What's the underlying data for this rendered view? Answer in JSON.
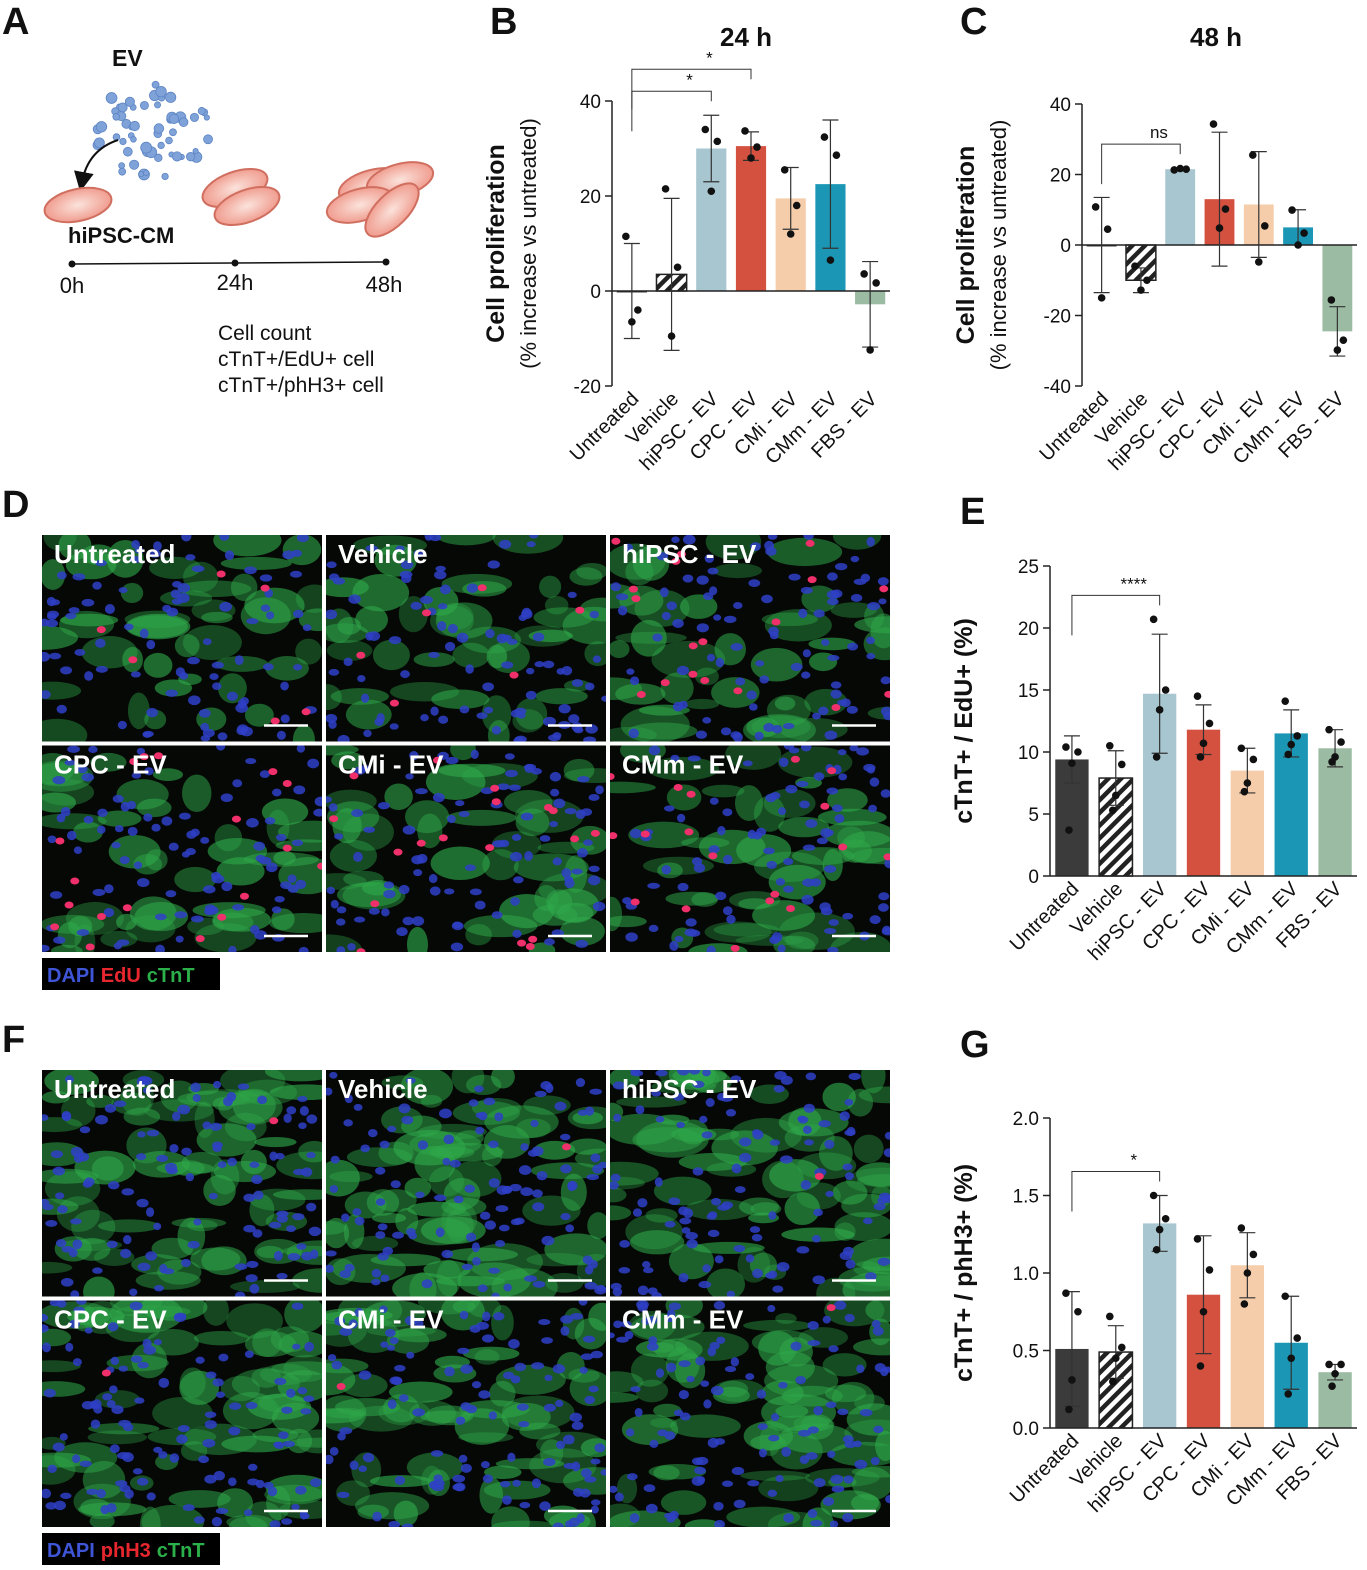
{
  "schematic": {
    "letter": "A",
    "ev_label": "EV",
    "cell_label": "hiPSC-CM",
    "timepoints": [
      "0h",
      "24h",
      "48h"
    ],
    "readouts": [
      "Cell count",
      "cTnT+/EdU+ cell",
      "cTnT+/phH3+ cell"
    ]
  },
  "micrographs": [
    {
      "letter": "D",
      "panels": [
        "Untreated",
        "Vehicle",
        "hiPSC - EV",
        "CPC - EV",
        "CMi - EV",
        "CMm - EV"
      ],
      "stain_legend": [
        {
          "name": "DAPI",
          "color": "#3f55d8"
        },
        {
          "name": "EdU",
          "color": "#e8262e"
        },
        {
          "name": "cTnT",
          "color": "#2bb04a"
        }
      ]
    },
    {
      "letter": "F",
      "panels": [
        "Untreated",
        "Vehicle",
        "hiPSC - EV",
        "CPC - EV",
        "CMi - EV",
        "CMm - EV"
      ],
      "stain_legend": [
        {
          "name": "DAPI",
          "color": "#3f55d8"
        },
        {
          "name": "phH3",
          "color": "#e8262e"
        },
        {
          "name": "cTnT",
          "color": "#2bb04a"
        }
      ]
    }
  ],
  "chart_data": [
    {
      "type": "bar",
      "letter": "B",
      "title": "24 h",
      "ylabel": [
        "Cell proliferation",
        "(% increase vs untreated)"
      ],
      "categories": [
        "Untreated",
        "Vehicle",
        "hiPSC - EV",
        "CPC - EV",
        "CMi - EV",
        "CMm - EV",
        "FBS - EV"
      ],
      "values": [
        0,
        3.5,
        30,
        30.5,
        19.5,
        22.5,
        -2.8
      ],
      "errors": [
        10,
        16,
        7,
        3,
        6.5,
        13.5,
        9
      ],
      "points": [
        [
          11.5,
          -4,
          -6.5
        ],
        [
          21.5,
          5,
          -9.5
        ],
        [
          34,
          31.5,
          21
        ],
        [
          33.7,
          30.3,
          28
        ],
        [
          25.5,
          18,
          12
        ],
        [
          32.4,
          28.6,
          6.5
        ],
        [
          3.6,
          1.7,
          -12.4
        ]
      ],
      "colors": [
        "#3b3b3b",
        "#ffffff",
        "#a7c6d0",
        "#d4503f",
        "#f5cdaa",
        "#1b97b5",
        "#9bbba3"
      ],
      "hatched": [
        "Vehicle"
      ],
      "ylim": [
        -20,
        40
      ],
      "yticks": [
        -20,
        0,
        20,
        40
      ],
      "significance": [
        {
          "groups": [
            "Untreated",
            "hiPSC - EV"
          ],
          "label": "*"
        },
        {
          "groups": [
            "Untreated",
            "CPC - EV"
          ],
          "label": "*"
        }
      ]
    },
    {
      "type": "bar",
      "letter": "C",
      "title": "48 h",
      "ylabel": [
        "Cell proliferation",
        "(% increase vs untreated)"
      ],
      "categories": [
        "Untreated",
        "Vehicle",
        "hiPSC - EV",
        "CPC - EV",
        "CMi - EV",
        "CMm - EV",
        "FBS - EV"
      ],
      "values": [
        0,
        -10,
        21.5,
        13,
        11.5,
        5,
        -24.5
      ],
      "errors": [
        13.5,
        3.5,
        0.3,
        19,
        15,
        5,
        7
      ],
      "points": [
        [
          10.8,
          4.5,
          -15
        ],
        [
          -6,
          -10,
          -12.8
        ],
        [
          21.3,
          21.5,
          21.7
        ],
        [
          34.3,
          10.2,
          4.8
        ],
        [
          25.5,
          5.4,
          -4.8
        ],
        [
          9.9,
          3.4,
          0
        ],
        [
          -15.6,
          -27,
          -29.8
        ]
      ],
      "colors": [
        "#3b3b3b",
        "#ffffff",
        "#a7c6d0",
        "#d4503f",
        "#f5cdaa",
        "#1b97b5",
        "#9bbba3"
      ],
      "hatched": [
        "Vehicle"
      ],
      "ylim": [
        -40,
        40
      ],
      "yticks": [
        -40,
        -20,
        0,
        20,
        40
      ],
      "significance": [
        {
          "groups": [
            "Untreated",
            "hiPSC - EV"
          ],
          "label": "ns"
        }
      ]
    },
    {
      "type": "bar",
      "letter": "E",
      "ylabel": [
        "cTnT+ / EdU+ (%)"
      ],
      "categories": [
        "Untreated",
        "Vehicle",
        "hiPSC - EV",
        "CPC - EV",
        "CMi - EV",
        "CMm - EV",
        "FBS - EV"
      ],
      "values": [
        9.4,
        7.9,
        14.7,
        11.8,
        8.5,
        11.5,
        10.3
      ],
      "errors": [
        1.9,
        2.2,
        4.8,
        2.0,
        1.8,
        1.9,
        1.5
      ],
      "points": [
        [
          10.4,
          10,
          9.1,
          3.7
        ],
        [
          10.5,
          9,
          6.5,
          5.3
        ],
        [
          20.7,
          15,
          13.4,
          9.6
        ],
        [
          14.5,
          12.3,
          10.7,
          9.6
        ],
        [
          10.3,
          9.4,
          7.5,
          6.8
        ],
        [
          14.1,
          11.3,
          10.6,
          9.8
        ],
        [
          11.8,
          10.8,
          9.6,
          9.2
        ]
      ],
      "colors": [
        "#3b3b3b",
        "#ffffff",
        "#a7c6d0",
        "#d4503f",
        "#f5cdaa",
        "#1b97b5",
        "#9bbba3"
      ],
      "hatched": [
        "Vehicle"
      ],
      "ylim": [
        0,
        25
      ],
      "yticks": [
        0,
        5,
        10,
        15,
        20,
        25
      ],
      "significance": [
        {
          "groups": [
            "Untreated",
            "hiPSC - EV"
          ],
          "label": "****"
        }
      ]
    },
    {
      "type": "bar",
      "letter": "G",
      "ylabel": [
        "cTnT+ / phH3+ (%)"
      ],
      "categories": [
        "Untreated",
        "Vehicle",
        "hiPSC - EV",
        "CPC - EV",
        "CMi - EV",
        "CMm - EV",
        "FBS - EV"
      ],
      "values": [
        0.51,
        0.49,
        1.32,
        0.86,
        1.05,
        0.55,
        0.36
      ],
      "errors": [
        0.37,
        0.17,
        0.18,
        0.38,
        0.21,
        0.3,
        0.05
      ],
      "points": [
        [
          0.87,
          0.75,
          0.31,
          0.12
        ],
        [
          0.72,
          0.52,
          0.45,
          0.3
        ],
        [
          1.5,
          1.35,
          1.28,
          1.15
        ],
        [
          1.22,
          1.02,
          0.75,
          0.4
        ],
        [
          1.29,
          1.12,
          1.0,
          0.8
        ],
        [
          0.85,
          0.58,
          0.45,
          0.22
        ],
        [
          0.41,
          0.41,
          0.35,
          0.27
        ]
      ],
      "colors": [
        "#3b3b3b",
        "#ffffff",
        "#a7c6d0",
        "#d4503f",
        "#f5cdaa",
        "#1b97b5",
        "#9bbba3"
      ],
      "hatched": [
        "Vehicle"
      ],
      "ylim": [
        0,
        2
      ],
      "yticks": [
        {
          "value": 0,
          "label": "0.0"
        },
        0.5,
        {
          "value": 1,
          "label": "1.0"
        },
        1.5,
        {
          "value": 2,
          "label": "2.0"
        }
      ],
      "significance": [
        {
          "groups": [
            "Untreated",
            "hiPSC - EV"
          ],
          "label": "*"
        }
      ]
    }
  ]
}
